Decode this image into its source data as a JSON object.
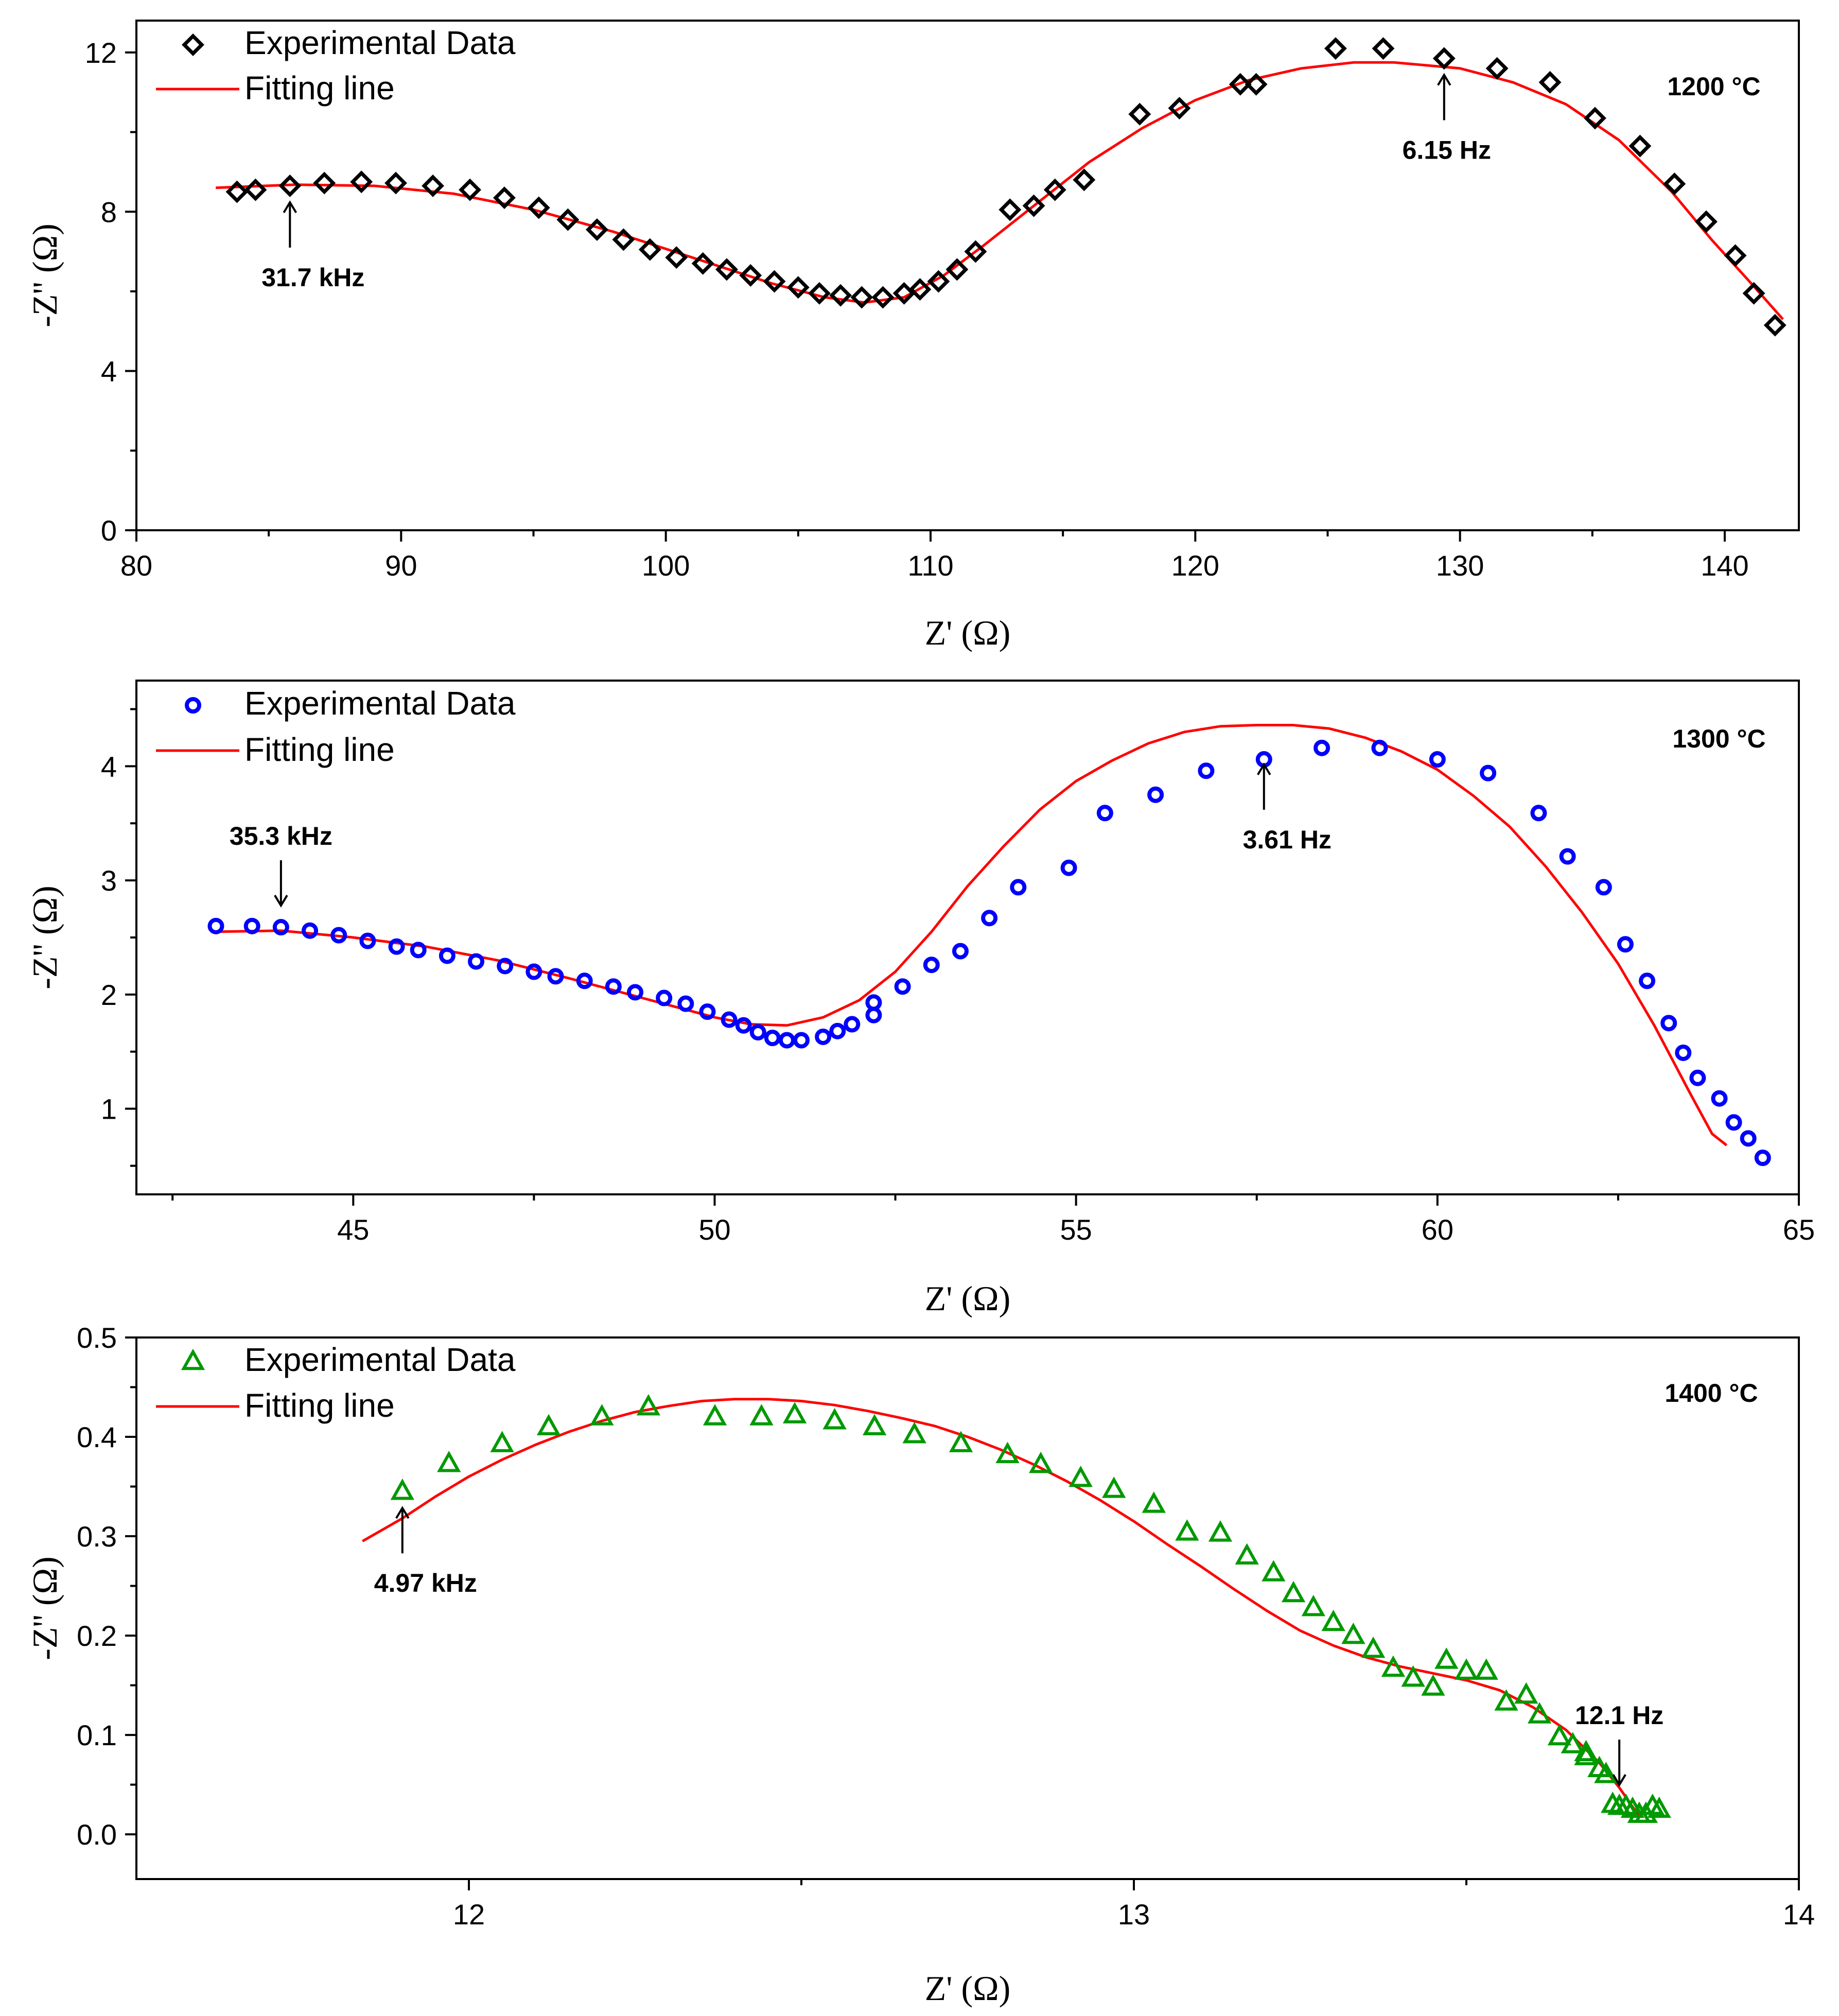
{
  "chart_data": [
    {
      "type": "scatter",
      "title": "1200 °C",
      "temperature_label": "1200 °C",
      "xlabel": "Z' (Ω)",
      "ylabel": "-Z'' (Ω)",
      "xlim": [
        80,
        142.8
      ],
      "ylim": [
        0,
        12.8
      ],
      "xticks": [
        80,
        90,
        100,
        110,
        120,
        130,
        140
      ],
      "xtick_labels": [
        "80",
        "90",
        "100",
        "110",
        "120",
        "130",
        "140"
      ],
      "yticks": [
        0,
        4,
        8,
        12
      ],
      "ytick_labels": [
        "0",
        "4",
        "8",
        "12"
      ],
      "legend": {
        "position": "top-left",
        "entries": [
          "Experimental Data",
          "Fitting line"
        ]
      },
      "marker": "diamond",
      "marker_color": "#000000",
      "line_color": "#ff0000",
      "series": [
        {
          "name": "Experimental Data",
          "x": [
            83.8,
            84.5,
            85.8,
            87.1,
            88.5,
            89.8,
            91.2,
            92.6,
            93.9,
            95.2,
            96.3,
            97.4,
            98.4,
            99.4,
            100.4,
            101.4,
            102.3,
            103.2,
            104.1,
            105.0,
            105.8,
            106.6,
            107.4,
            108.2,
            109.0,
            109.6,
            110.3,
            111.0,
            111.7,
            113.0,
            113.9,
            114.7,
            115.8,
            117.9,
            119.4,
            121.7,
            122.3,
            125.3,
            127.1,
            129.4,
            131.4,
            133.4,
            135.1,
            136.8,
            138.1,
            139.3,
            140.4,
            141.1,
            141.9
          ],
          "y": [
            8.5,
            8.55,
            8.65,
            8.72,
            8.75,
            8.72,
            8.65,
            8.55,
            8.35,
            8.1,
            7.8,
            7.55,
            7.3,
            7.05,
            6.85,
            6.7,
            6.55,
            6.4,
            6.25,
            6.1,
            5.95,
            5.9,
            5.85,
            5.85,
            5.95,
            6.05,
            6.25,
            6.55,
            7.0,
            8.05,
            8.15,
            8.55,
            8.8,
            10.45,
            10.6,
            11.2,
            11.2,
            12.1,
            12.1,
            11.85,
            11.6,
            11.25,
            10.35,
            9.65,
            8.7,
            7.75,
            6.9,
            5.95,
            5.15
          ]
        },
        {
          "name": "Fitting line",
          "x": [
            83.0,
            86,
            89,
            92,
            95,
            98,
            101,
            104,
            106,
            107.5,
            109,
            110.5,
            112,
            114,
            116,
            118,
            120,
            122,
            124,
            126,
            127.5,
            130,
            132,
            134,
            136,
            138,
            139.5,
            141,
            142.2
          ],
          "y": [
            8.6,
            8.68,
            8.65,
            8.45,
            8.05,
            7.5,
            6.85,
            6.2,
            5.85,
            5.72,
            5.85,
            6.4,
            7.15,
            8.2,
            9.25,
            10.1,
            10.8,
            11.3,
            11.6,
            11.75,
            11.75,
            11.6,
            11.25,
            10.7,
            9.8,
            8.5,
            7.3,
            6.2,
            5.3
          ]
        }
      ],
      "annotations": [
        {
          "text": "31.7 kHz",
          "x": 85.8,
          "y": 8.65
        },
        {
          "text": "6.15 Hz",
          "x": 129.4,
          "y": 11.85
        }
      ]
    },
    {
      "type": "scatter",
      "title": "1300 °C",
      "temperature_label": "1300 °C",
      "xlabel": "Z' (Ω)",
      "ylabel": "-Z'' (Ω)",
      "xlim": [
        42,
        65
      ],
      "ylim": [
        0.25,
        4.75
      ],
      "xticks": [
        45,
        50,
        55,
        60,
        65
      ],
      "xtick_labels": [
        "45",
        "50",
        "55",
        "60",
        "65"
      ],
      "yticks": [
        1,
        2,
        3,
        4
      ],
      "ytick_labels": [
        "1",
        "2",
        "3",
        "4"
      ],
      "legend": {
        "position": "top-left",
        "entries": [
          "Experimental Data",
          "Fitting line"
        ]
      },
      "marker": "circle",
      "marker_color": "#0000ff",
      "line_color": "#ff0000",
      "series": [
        {
          "name": "Experimental Data",
          "x": [
            43.1,
            43.6,
            44.0,
            44.4,
            44.8,
            45.2,
            45.6,
            45.9,
            46.3,
            46.7,
            47.1,
            47.5,
            47.8,
            48.2,
            48.6,
            48.9,
            49.3,
            49.6,
            49.9,
            50.2,
            50.4,
            50.6,
            50.8,
            51.0,
            51.2,
            51.5,
            51.7,
            51.9,
            52.2,
            52.2,
            52.6,
            53.0,
            53.4,
            53.8,
            54.2,
            54.9,
            55.4,
            56.1,
            56.8,
            57.6,
            58.4,
            59.2,
            60.0,
            60.7,
            61.4,
            61.8,
            62.3,
            62.6,
            62.9,
            63.2,
            63.4,
            63.6,
            63.9,
            64.1,
            64.3,
            64.5
          ],
          "y": [
            2.6,
            2.6,
            2.59,
            2.56,
            2.52,
            2.47,
            2.42,
            2.39,
            2.34,
            2.29,
            2.25,
            2.2,
            2.16,
            2.12,
            2.07,
            2.02,
            1.97,
            1.92,
            1.85,
            1.78,
            1.73,
            1.67,
            1.62,
            1.6,
            1.6,
            1.63,
            1.68,
            1.74,
            1.82,
            1.93,
            2.07,
            2.26,
            2.38,
            2.67,
            2.94,
            3.11,
            3.59,
            3.75,
            3.96,
            4.06,
            4.16,
            4.16,
            4.06,
            3.94,
            3.59,
            3.21,
            2.94,
            2.44,
            2.12,
            1.75,
            1.49,
            1.27,
            1.09,
            0.88,
            0.74,
            0.57
          ]
        },
        {
          "name": "Fitting line",
          "x": [
            43.1,
            44,
            45,
            46,
            47,
            48,
            49,
            50,
            50.5,
            51,
            51.5,
            52,
            52.5,
            53,
            53.5,
            54,
            54.5,
            55,
            55.5,
            56,
            56.5,
            57,
            57.5,
            58,
            58.5,
            59,
            59.5,
            60,
            60.5,
            61,
            61.5,
            62,
            62.5,
            63,
            63.5,
            63.8,
            64.0
          ],
          "y": [
            2.55,
            2.56,
            2.5,
            2.42,
            2.3,
            2.14,
            1.97,
            1.8,
            1.74,
            1.73,
            1.8,
            1.95,
            2.2,
            2.55,
            2.95,
            3.3,
            3.62,
            3.87,
            4.05,
            4.2,
            4.3,
            4.35,
            4.36,
            4.36,
            4.33,
            4.25,
            4.13,
            3.97,
            3.74,
            3.47,
            3.12,
            2.72,
            2.27,
            1.73,
            1.13,
            0.78,
            0.68
          ]
        }
      ],
      "annotations": [
        {
          "text": "35.3 kHz",
          "x": 44.0,
          "y": 2.59
        },
        {
          "text": "3.61 Hz",
          "x": 57.6,
          "y": 4.16
        }
      ]
    },
    {
      "type": "scatter",
      "title": "1400 °C",
      "temperature_label": "1400 °C",
      "xlabel": "Z' (Ω)",
      "ylabel": "-Z'' (Ω)",
      "xlim": [
        11.5,
        14.0
      ],
      "ylim": [
        -0.045,
        0.5
      ],
      "xticks": [
        12,
        13,
        14
      ],
      "xtick_labels": [
        "12",
        "13",
        "14"
      ],
      "yticks": [
        0.0,
        0.1,
        0.2,
        0.3,
        0.4,
        0.5
      ],
      "ytick_labels": [
        "0.0",
        "0.1",
        "0.2",
        "0.3",
        "0.4",
        "0.5"
      ],
      "legend": {
        "position": "top-left",
        "entries": [
          "Experimental Data",
          "Fitting line"
        ]
      },
      "marker": "triangle",
      "marker_color": "#009900",
      "line_color": "#ff0000",
      "series": [
        {
          "name": "Experimental Data",
          "x": [
            11.9,
            11.97,
            12.05,
            12.12,
            12.2,
            12.27,
            12.37,
            12.44,
            12.49,
            12.55,
            12.61,
            12.67,
            12.74,
            12.81,
            12.86,
            12.92,
            12.97,
            13.03,
            13.08,
            13.13,
            13.17,
            13.21,
            13.24,
            13.27,
            13.3,
            13.33,
            13.36,
            13.39,
            13.42,
            13.45,
            13.47,
            13.5,
            13.53,
            13.56,
            13.59,
            13.61,
            13.64,
            13.66,
            13.68,
            13.68,
            13.7,
            13.71,
            13.72,
            13.73,
            13.74,
            13.75,
            13.76,
            13.77,
            13.78,
            13.79
          ],
          "y": [
            0.345,
            0.373,
            0.393,
            0.41,
            0.42,
            0.43,
            0.42,
            0.42,
            0.422,
            0.416,
            0.41,
            0.402,
            0.393,
            0.382,
            0.372,
            0.358,
            0.347,
            0.332,
            0.304,
            0.303,
            0.28,
            0.263,
            0.242,
            0.228,
            0.213,
            0.2,
            0.186,
            0.167,
            0.157,
            0.148,
            0.175,
            0.164,
            0.164,
            0.133,
            0.14,
            0.12,
            0.098,
            0.09,
            0.078,
            0.082,
            0.066,
            0.06,
            0.03,
            0.028,
            0.028,
            0.025,
            0.02,
            0.02,
            0.028,
            0.025
          ]
        },
        {
          "name": "Fitting line",
          "x": [
            11.84,
            11.9,
            11.95,
            12.0,
            12.05,
            12.1,
            12.15,
            12.2,
            12.25,
            12.3,
            12.35,
            12.4,
            12.45,
            12.5,
            12.55,
            12.6,
            12.65,
            12.7,
            12.75,
            12.8,
            12.85,
            12.9,
            12.95,
            13.0,
            13.05,
            13.1,
            13.15,
            13.2,
            13.25,
            13.3,
            13.35,
            13.4,
            13.45,
            13.5,
            13.55,
            13.6,
            13.65,
            13.7,
            13.73,
            13.76
          ],
          "y": [
            0.295,
            0.318,
            0.34,
            0.36,
            0.377,
            0.392,
            0.405,
            0.416,
            0.425,
            0.431,
            0.436,
            0.438,
            0.438,
            0.436,
            0.432,
            0.426,
            0.419,
            0.411,
            0.4,
            0.387,
            0.372,
            0.355,
            0.336,
            0.315,
            0.292,
            0.27,
            0.247,
            0.225,
            0.205,
            0.19,
            0.178,
            0.169,
            0.162,
            0.155,
            0.145,
            0.128,
            0.105,
            0.072,
            0.047,
            0.018
          ]
        }
      ],
      "annotations": [
        {
          "text": "4.97 kHz",
          "x": 11.9,
          "y": 0.345
        },
        {
          "text": "12.1 Hz",
          "x": 13.73,
          "y": 0.028
        }
      ]
    }
  ]
}
